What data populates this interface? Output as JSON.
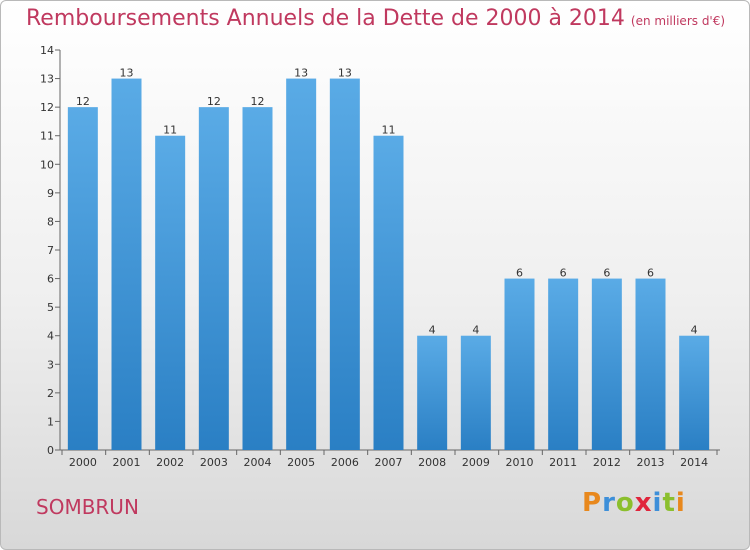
{
  "header": {
    "title": "Remboursements Annuels de la Dette de 2000 à 2014",
    "unit": "(en milliers d'€)"
  },
  "footer": {
    "place": "SOMBRUN",
    "logo": "Proxiti"
  },
  "colors": {
    "accent": "#c0395f",
    "bar_top": "#5aabe6",
    "bar_bottom": "#2a7fc4",
    "logo_letters": [
      "#e8881d",
      "#3d8fd9",
      "#8bbf2d",
      "#e0253c",
      "#3d8fd9",
      "#8bbf2d",
      "#e8881d"
    ]
  },
  "chart_data": {
    "type": "bar",
    "title": "Remboursements Annuels de la Dette de 2000 à 2014",
    "xlabel": "",
    "ylabel": "",
    "categories": [
      "2000",
      "2001",
      "2002",
      "2003",
      "2004",
      "2005",
      "2006",
      "2007",
      "2008",
      "2009",
      "2010",
      "2011",
      "2012",
      "2013",
      "2014"
    ],
    "values": [
      12,
      13,
      11,
      12,
      12,
      13,
      13,
      11,
      4,
      4,
      6,
      6,
      6,
      6,
      4
    ],
    "ylim": [
      0,
      14
    ],
    "yticks": [
      0,
      1,
      2,
      3,
      4,
      5,
      6,
      7,
      8,
      9,
      10,
      11,
      12,
      13,
      14
    ],
    "grid": false,
    "data_labels": true
  }
}
